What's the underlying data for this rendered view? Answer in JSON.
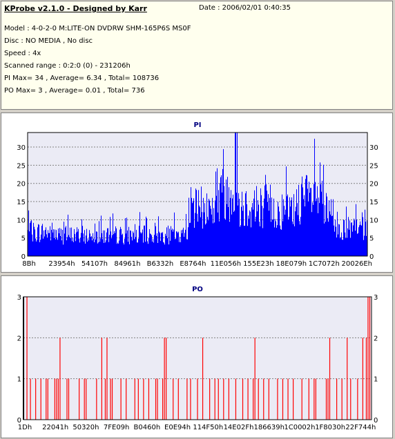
{
  "header": {
    "title": "KProbe v2.1.0 - Designed by Karr",
    "date": "Date : 2006/02/01 0:40:35",
    "model": "Model : 4-0-2-0 M:LITE-ON DVDRW SHM-165P6S MS0F",
    "disc": "Disc : NO MEDIA , No disc",
    "speed": "Speed : 4x",
    "scanned_range": "Scanned range : 0:2:0 (0) - 231206h",
    "pi_summary": "PI Max= 34 , Average= 6.34 , Total= 108736",
    "po_summary": "PO Max= 3 , Average= 0.01 , Total= 736"
  },
  "colors": {
    "pi_bar": "#0000ff",
    "po_bar": "#ff0000",
    "plot_bg": "#ebebf5",
    "grid": "#808080",
    "title": "#000080"
  },
  "chart_data": [
    {
      "type": "bar",
      "title": "PI",
      "xlabel": "",
      "ylabel": "",
      "ylim": [
        0,
        34
      ],
      "yticks": [
        0,
        5,
        10,
        15,
        20,
        25,
        30
      ],
      "xtick_labels": [
        "8Bh",
        "23954h",
        "54107h",
        "84961h",
        "B6332h",
        "E8764h",
        "11E056h",
        "155E23h",
        "18E079h",
        "1C7072h",
        "20026Eh"
      ],
      "grid": true,
      "segments": [
        {
          "from": 0.0,
          "to": 0.08,
          "level": 8
        },
        {
          "from": 0.08,
          "to": 0.46,
          "level": 7
        },
        {
          "from": 0.46,
          "to": 0.47,
          "level": 10
        },
        {
          "from": 0.47,
          "to": 0.55,
          "level": 16
        },
        {
          "from": 0.55,
          "to": 0.6,
          "level": 21
        },
        {
          "from": 0.6,
          "to": 0.62,
          "level": 23
        },
        {
          "from": 0.62,
          "to": 0.72,
          "level": 17
        },
        {
          "from": 0.72,
          "to": 0.79,
          "level": 15
        },
        {
          "from": 0.79,
          "to": 0.87,
          "level": 19
        },
        {
          "from": 0.87,
          "to": 0.9,
          "level": 14
        },
        {
          "from": 0.9,
          "to": 1.0,
          "level": 9
        }
      ],
      "max": 34,
      "max_at": 0.61
    },
    {
      "type": "bar",
      "title": "PO",
      "xlabel": "",
      "ylabel": "",
      "ylim": [
        0,
        3
      ],
      "yticks": [
        0,
        1,
        2,
        3
      ],
      "xtick_labels": [
        "1Dh",
        "22041h",
        "50320h",
        "7FE09h",
        "B0460h",
        "E0E94h",
        "114F50h",
        "14E02Fh",
        "186639h",
        "1C0002h",
        "1F8030h",
        "22F744h"
      ],
      "grid": true,
      "spikes": [
        {
          "pos": 0.01,
          "v": 3
        },
        {
          "pos": 0.02,
          "v": 1
        },
        {
          "pos": 0.035,
          "v": 1
        },
        {
          "pos": 0.05,
          "v": 1
        },
        {
          "pos": 0.065,
          "v": 1
        },
        {
          "pos": 0.07,
          "v": 1
        },
        {
          "pos": 0.09,
          "v": 1
        },
        {
          "pos": 0.095,
          "v": 1
        },
        {
          "pos": 0.1,
          "v": 1
        },
        {
          "pos": 0.105,
          "v": 2
        },
        {
          "pos": 0.125,
          "v": 1
        },
        {
          "pos": 0.13,
          "v": 1
        },
        {
          "pos": 0.16,
          "v": 1
        },
        {
          "pos": 0.175,
          "v": 1
        },
        {
          "pos": 0.18,
          "v": 1
        },
        {
          "pos": 0.21,
          "v": 1
        },
        {
          "pos": 0.225,
          "v": 2
        },
        {
          "pos": 0.235,
          "v": 1
        },
        {
          "pos": 0.24,
          "v": 2
        },
        {
          "pos": 0.25,
          "v": 1
        },
        {
          "pos": 0.255,
          "v": 1
        },
        {
          "pos": 0.28,
          "v": 1
        },
        {
          "pos": 0.295,
          "v": 1
        },
        {
          "pos": 0.32,
          "v": 1
        },
        {
          "pos": 0.33,
          "v": 1
        },
        {
          "pos": 0.345,
          "v": 1
        },
        {
          "pos": 0.36,
          "v": 1
        },
        {
          "pos": 0.38,
          "v": 1
        },
        {
          "pos": 0.385,
          "v": 1
        },
        {
          "pos": 0.4,
          "v": 1
        },
        {
          "pos": 0.405,
          "v": 2
        },
        {
          "pos": 0.41,
          "v": 2
        },
        {
          "pos": 0.43,
          "v": 1
        },
        {
          "pos": 0.445,
          "v": 1
        },
        {
          "pos": 0.47,
          "v": 1
        },
        {
          "pos": 0.48,
          "v": 1
        },
        {
          "pos": 0.5,
          "v": 1
        },
        {
          "pos": 0.515,
          "v": 2
        },
        {
          "pos": 0.535,
          "v": 1
        },
        {
          "pos": 0.55,
          "v": 1
        },
        {
          "pos": 0.56,
          "v": 1
        },
        {
          "pos": 0.575,
          "v": 1
        },
        {
          "pos": 0.59,
          "v": 1
        },
        {
          "pos": 0.61,
          "v": 1
        },
        {
          "pos": 0.63,
          "v": 1
        },
        {
          "pos": 0.645,
          "v": 1
        },
        {
          "pos": 0.66,
          "v": 1
        },
        {
          "pos": 0.665,
          "v": 2
        },
        {
          "pos": 0.675,
          "v": 1
        },
        {
          "pos": 0.69,
          "v": 1
        },
        {
          "pos": 0.705,
          "v": 1
        },
        {
          "pos": 0.73,
          "v": 1
        },
        {
          "pos": 0.745,
          "v": 1
        },
        {
          "pos": 0.76,
          "v": 1
        },
        {
          "pos": 0.775,
          "v": 1
        },
        {
          "pos": 0.8,
          "v": 1
        },
        {
          "pos": 0.82,
          "v": 1
        },
        {
          "pos": 0.835,
          "v": 1
        },
        {
          "pos": 0.84,
          "v": 1
        },
        {
          "pos": 0.87,
          "v": 1
        },
        {
          "pos": 0.875,
          "v": 1
        },
        {
          "pos": 0.88,
          "v": 2
        },
        {
          "pos": 0.9,
          "v": 1
        },
        {
          "pos": 0.915,
          "v": 1
        },
        {
          "pos": 0.93,
          "v": 2
        },
        {
          "pos": 0.94,
          "v": 1
        },
        {
          "pos": 0.96,
          "v": 1
        },
        {
          "pos": 0.975,
          "v": 2
        },
        {
          "pos": 0.985,
          "v": 2
        },
        {
          "pos": 0.99,
          "v": 3
        },
        {
          "pos": 0.995,
          "v": 3
        }
      ]
    }
  ]
}
